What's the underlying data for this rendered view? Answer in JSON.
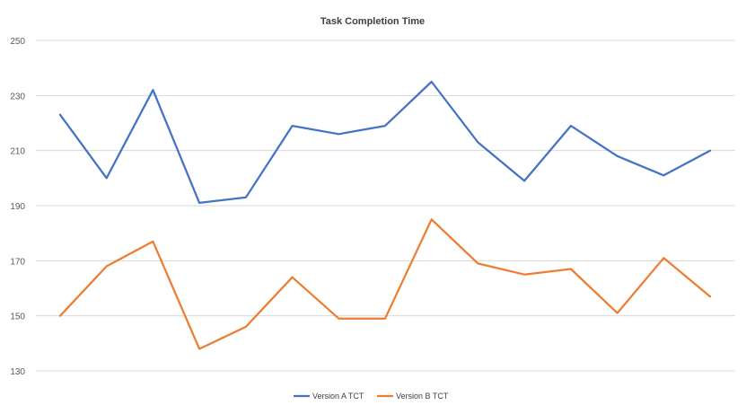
{
  "chart_data": {
    "type": "line",
    "title": "Task Completion Time",
    "xlabel": "",
    "ylabel": "",
    "ylim": [
      130,
      250
    ],
    "yticks": [
      250,
      230,
      210,
      190,
      170,
      150,
      130
    ],
    "grid": true,
    "legend_position": "bottom",
    "x": [
      1,
      2,
      3,
      4,
      5,
      6,
      7,
      8,
      9,
      10,
      11,
      12,
      13,
      14,
      15
    ],
    "series": [
      {
        "name": "Version A TCT",
        "color": "#4472c4",
        "values": [
          223,
          200,
          232,
          191,
          193,
          219,
          216,
          219,
          235,
          213,
          199,
          219,
          208,
          201,
          210
        ]
      },
      {
        "name": "Version B TCT",
        "color": "#ed7d31",
        "values": [
          150,
          168,
          177,
          138,
          146,
          164,
          149,
          149,
          185,
          169,
          165,
          167,
          151,
          171,
          157
        ]
      }
    ]
  }
}
